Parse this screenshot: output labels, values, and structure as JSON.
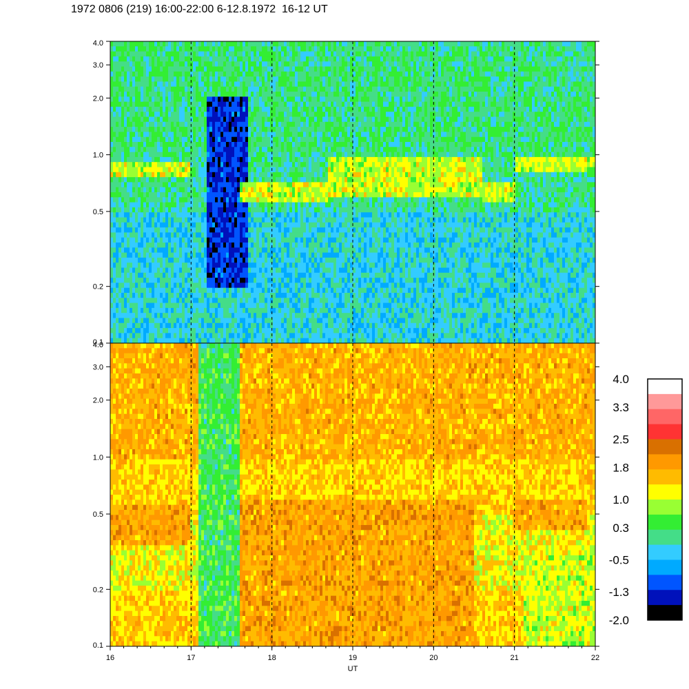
{
  "title": "1972 0806 (219) 16:00-22:00 6-12.8.1972  16-12 UT",
  "chart_data": [
    {
      "type": "heatmap",
      "panel": "upper",
      "x_range": [
        16,
        22
      ],
      "y_range": [
        0.1,
        4.0
      ],
      "y_scale": "log",
      "y_ticks": [
        "4.0",
        "3.0",
        "2.0",
        "1.0",
        "0.5",
        "0.2",
        "0.1"
      ],
      "y_tick_values": [
        4.0,
        3.0,
        2.0,
        1.0,
        0.5,
        0.2,
        0.1
      ],
      "vertical_dashed_lines": [
        17,
        18,
        19,
        20,
        21
      ],
      "dominant_colors": [
        "#44dd88",
        "#33ccff",
        "#00aaff",
        "#99ff33",
        "#ffff00",
        "#0044ff"
      ],
      "features": [
        {
          "x": [
            16.0,
            17.0
          ],
          "y": [
            0.75,
            0.9
          ],
          "level": 1.0
        },
        {
          "x": [
            17.2,
            17.7
          ],
          "y": [
            0.2,
            2.0
          ],
          "level": -1.3
        },
        {
          "x": [
            17.6,
            18.7
          ],
          "y": [
            0.55,
            0.7
          ],
          "level": 1.0
        },
        {
          "x": [
            18.7,
            20.6
          ],
          "y": [
            0.6,
            1.0
          ],
          "level": 1.0
        },
        {
          "x": [
            20.6,
            21.0
          ],
          "y": [
            0.55,
            0.7
          ],
          "level": 1.0
        },
        {
          "x": [
            21.0,
            22.0
          ],
          "y": [
            0.8,
            0.95
          ],
          "level": 1.0
        }
      ]
    },
    {
      "type": "heatmap",
      "panel": "lower",
      "x_range": [
        16,
        22
      ],
      "y_range": [
        0.1,
        4.0
      ],
      "y_scale": "log",
      "y_ticks": [
        "4.0",
        "3.0",
        "2.0",
        "1.0",
        "0.5",
        "0.2",
        "0.1"
      ],
      "y_tick_values": [
        4.0,
        3.0,
        2.0,
        1.0,
        0.5,
        0.2,
        0.1
      ],
      "x_ticks": [
        "16",
        "17",
        "18",
        "19",
        "20",
        "21",
        "22"
      ],
      "x_tick_values": [
        16,
        17,
        18,
        19,
        20,
        21,
        22
      ],
      "xlabel": "UT",
      "vertical_dashed_lines": [
        17,
        18,
        19,
        20,
        21
      ],
      "dominant_colors": [
        "#ff9900",
        "#ffbb00",
        "#ffff00",
        "#99ff33",
        "#33ee33"
      ],
      "features": [
        {
          "x": [
            16.0,
            17.0
          ],
          "y": [
            0.35,
            0.55
          ],
          "level": 1.8
        },
        {
          "x": [
            17.1,
            17.6
          ],
          "y": [
            0.1,
            4.0
          ],
          "level": 0.3
        },
        {
          "x": [
            17.6,
            20.5
          ],
          "y": [
            0.1,
            0.6
          ],
          "level": 1.8
        },
        {
          "x": [
            21.0,
            21.9
          ],
          "y": [
            0.4,
            0.6
          ],
          "level": 1.8
        },
        {
          "x": [
            21.1,
            22.0
          ],
          "y": [
            0.1,
            0.3
          ],
          "level": 1.0
        }
      ]
    }
  ],
  "colorbar": {
    "labels": [
      "4.0",
      "3.3",
      "2.5",
      "1.8",
      "1.0",
      "0.3",
      "-0.5",
      "-1.3",
      "-2.0"
    ],
    "label_values": [
      4.0,
      3.3,
      2.5,
      1.8,
      1.0,
      0.3,
      -0.5,
      -1.3,
      -2.0
    ],
    "levels": [
      {
        "from": 3.625,
        "to": 4.0,
        "color": "#ffffff"
      },
      {
        "from": 3.25,
        "to": 3.625,
        "color": "#ff9999"
      },
      {
        "from": 2.875,
        "to": 3.25,
        "color": "#ff6666"
      },
      {
        "from": 2.5,
        "to": 2.875,
        "color": "#ff3333"
      },
      {
        "from": 2.125,
        "to": 2.5,
        "color": "#d97000"
      },
      {
        "from": 1.75,
        "to": 2.125,
        "color": "#ff9900"
      },
      {
        "from": 1.375,
        "to": 1.75,
        "color": "#ffbb00"
      },
      {
        "from": 1.0,
        "to": 1.375,
        "color": "#ffff00"
      },
      {
        "from": 0.625,
        "to": 1.0,
        "color": "#99ff33"
      },
      {
        "from": 0.25,
        "to": 0.625,
        "color": "#33ee33"
      },
      {
        "from": -0.125,
        "to": 0.25,
        "color": "#44dd88"
      },
      {
        "from": -0.5,
        "to": -0.125,
        "color": "#33ccff"
      },
      {
        "from": -0.875,
        "to": -0.5,
        "color": "#00aaff"
      },
      {
        "from": -1.25,
        "to": -0.875,
        "color": "#0055ff"
      },
      {
        "from": -1.625,
        "to": -1.25,
        "color": "#0011bb"
      },
      {
        "from": -2.0,
        "to": -1.625,
        "color": "#000000"
      }
    ]
  }
}
